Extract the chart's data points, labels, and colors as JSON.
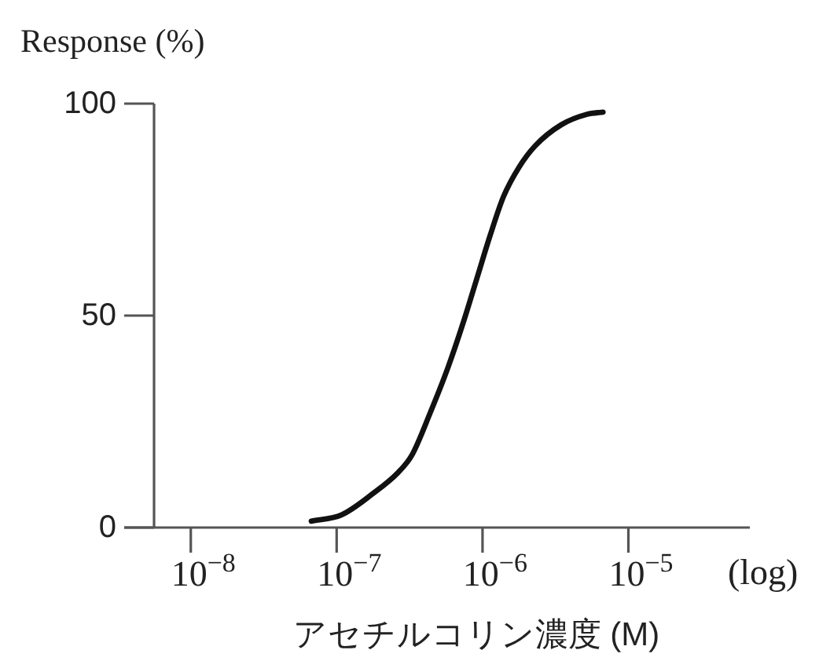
{
  "chart_data": {
    "type": "line",
    "ylabel": "Response (%)",
    "xlabel": "アセチルコリン濃度 (M)",
    "annotations": [
      "(log)"
    ],
    "log": "x",
    "x": [
      6.7e-08,
      1.08e-07,
      1.77e-07,
      2.64e-07,
      3.27e-07,
      4.37e-07,
      5.83e-07,
      7.48e-07,
      9.19e-07,
      1.13e-06,
      1.39e-06,
      1.78e-06,
      2.29e-06,
      3.46e-06,
      5.22e-06,
      6.7e-06
    ],
    "series": [
      {
        "color": "#111111",
        "values": [
          1.5,
          3,
          8,
          13,
          17,
          27,
          38,
          49,
          59,
          69,
          78,
          85,
          90,
          95,
          97.5,
          98
        ]
      }
    ],
    "xlim": [
      5.6e-09,
      6.8e-05
    ],
    "ylim": [
      0,
      100
    ],
    "yticks": [
      0,
      50,
      100
    ],
    "xticks": [
      {
        "value": 1e-08,
        "label": "10$^{−8}$"
      },
      {
        "value": 1e-07,
        "label": "10$^{−7}$"
      },
      {
        "value": 1e-06,
        "label": "10$^{−6}$"
      },
      {
        "value": 1e-05,
        "label": "10$^{−5}$"
      }
    ],
    "line_style": "solid"
  }
}
